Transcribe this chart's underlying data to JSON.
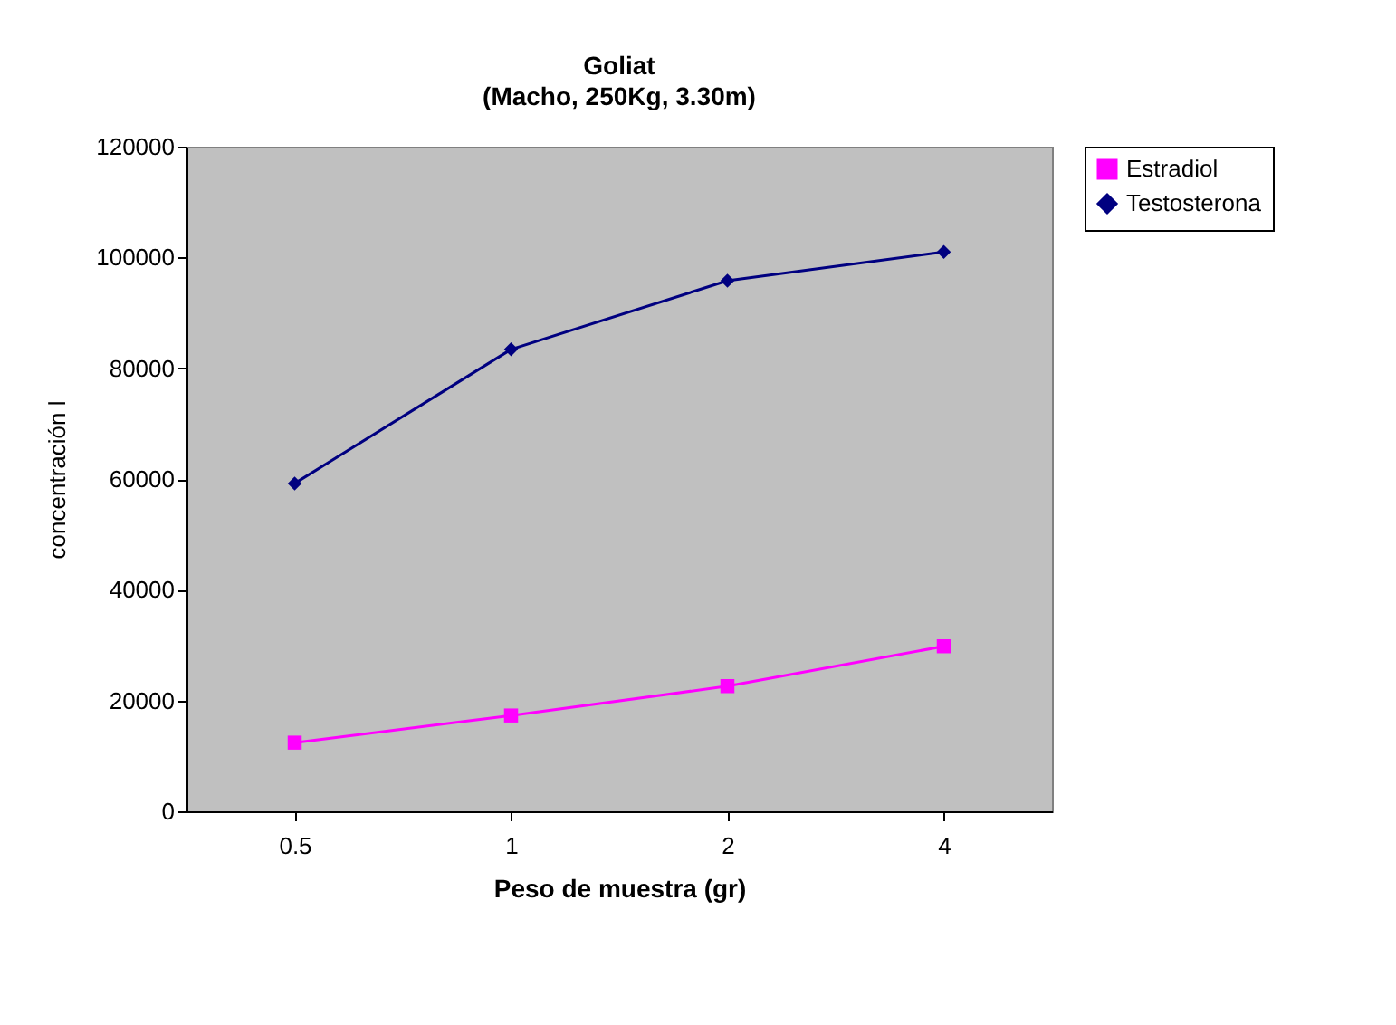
{
  "chart_data": {
    "type": "line",
    "title": "Goliat",
    "subtitle": "(Macho, 250Kg, 3.30m)",
    "xlabel": "Peso de muestra (gr)",
    "ylabel": "concentración   l",
    "categories": [
      "0.5",
      "1",
      "2",
      "4"
    ],
    "series": [
      {
        "name": "Estradiol",
        "color": "#ff00ff",
        "marker": "square",
        "values": [
          12400,
          17300,
          22600,
          29800
        ]
      },
      {
        "name": "Testosterona",
        "color": "#000080",
        "marker": "diamond",
        "values": [
          59200,
          83400,
          95800,
          101000
        ]
      }
    ],
    "ylim": [
      0,
      120000
    ],
    "yticks": [
      0,
      20000,
      40000,
      60000,
      80000,
      100000,
      120000
    ],
    "grid": false,
    "legend": "right",
    "line_style": "solid"
  }
}
